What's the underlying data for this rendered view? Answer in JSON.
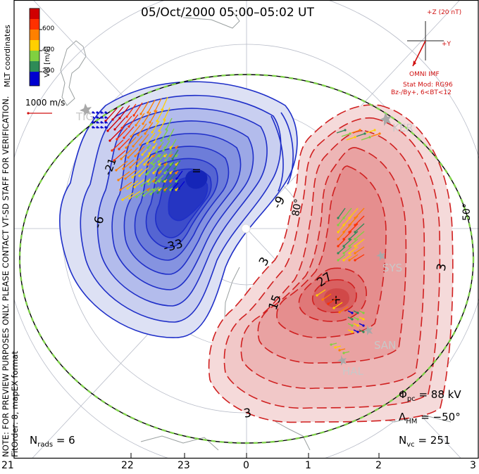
{
  "title": "05/Oct/2000 05:00–05:02 UT",
  "side_note": {
    "line1": "NOTE: FOR PREVIEW PURPOSES ONLY. PLEASE CONTACT VT-SD STAFF FOR VERIFICATION.",
    "line2": "FitOrder: 8, mapEX format",
    "mlt_coords": "MLT coordinates"
  },
  "colorbar": {
    "label": "Vel [m/s]",
    "ticks": [
      "600",
      "400",
      "200"
    ],
    "colors": [
      "#0000d0",
      "#2e8b57",
      "#80d040",
      "#ffd000",
      "#ff8000",
      "#ff3000",
      "#d00000"
    ]
  },
  "vector_scale": "1000 m/s",
  "imf": {
    "z_label": "+Z (20 nT)",
    "y_label": "+Y",
    "source": "OMNI IMF",
    "model": "Stat Mod: RG96",
    "model_params": "Bz-/By+, 6<BT<12",
    "color": "#d01010"
  },
  "latitude_labels": [
    "80°",
    "50°"
  ],
  "radars": [
    "TIG",
    "KER",
    "SYS",
    "SAN",
    "HAL"
  ],
  "contours": {
    "negative": [
      "-6",
      "-21",
      "-33",
      "-9"
    ],
    "positive": [
      "27",
      "15",
      "3",
      "3",
      "3"
    ]
  },
  "stats": {
    "phi_pc_label": "Φ",
    "phi_pc_sub": "pc",
    "phi_pc_value": "= 88 kV",
    "lambda_label": "Λ",
    "lambda_sub": "HM",
    "lambda_value": "= −50°",
    "nvc_label": "N",
    "nvc_sub": "vc",
    "nvc_value": "= 251",
    "nrads_label": "N",
    "nrads_sub": "rads",
    "nrads_value": "= 6"
  },
  "mlt_axis": [
    "21",
    "22",
    "23",
    "0",
    "1",
    "2",
    "3"
  ],
  "colors": {
    "negative_potential": "#1f2fc8",
    "positive_potential": "#d02020",
    "hmb_boundary": "#7fd14a"
  }
}
